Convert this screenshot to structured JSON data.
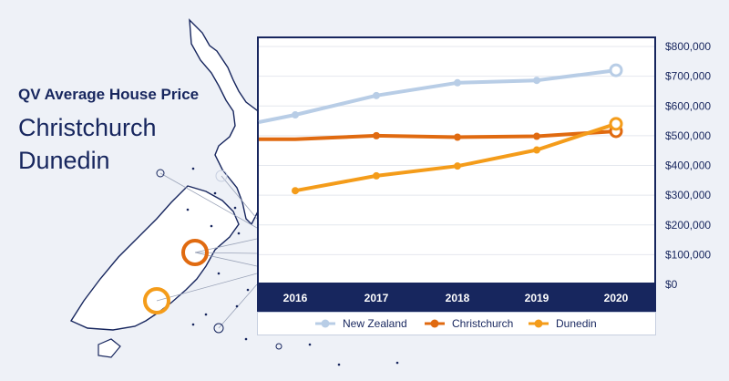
{
  "title": "QV Average House Price",
  "cities": [
    "Christchurch",
    "Dunedin"
  ],
  "colors": {
    "navy": "#17265e",
    "new_zealand": "#b8cde6",
    "christchurch": "#e06a10",
    "dunedin": "#f49c1a"
  },
  "chart_data": {
    "type": "line",
    "x": [
      "2016",
      "2017",
      "2018",
      "2019",
      "2020"
    ],
    "series": [
      {
        "name": "New Zealand",
        "values": [
          570000,
          635000,
          678000,
          686000,
          720000
        ],
        "color": "#b8cde6"
      },
      {
        "name": "Christchurch",
        "values": [
          488000,
          500000,
          495000,
          498000,
          515000
        ],
        "color": "#e06a10"
      },
      {
        "name": "Dunedin",
        "values": [
          315000,
          365000,
          398000,
          452000,
          540000
        ],
        "color": "#f49c1a"
      }
    ],
    "y_ticks": [
      "$800,000",
      "$700,000",
      "$600,000",
      "$500,000",
      "$400,000",
      "$300,000",
      "$200,000",
      "$100,000",
      "$0"
    ],
    "ylim": [
      0,
      800000
    ],
    "legend_position": "bottom",
    "grid": true
  }
}
